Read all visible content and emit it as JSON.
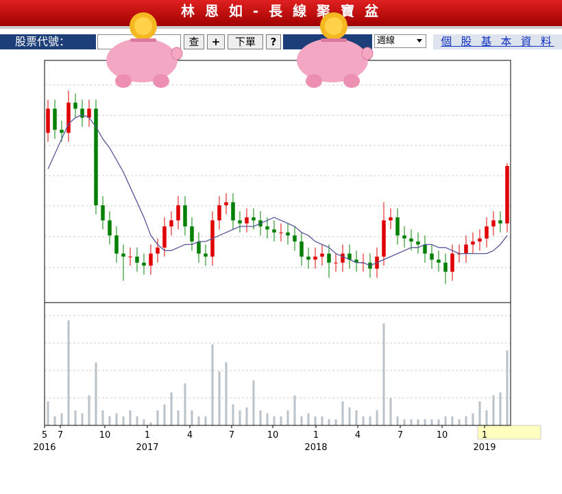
{
  "header": {
    "title": "林 恩 如 - 長 線 聚 寶 盆"
  },
  "toolbar": {
    "label": "股票代號：",
    "buttons": [
      "查",
      "+",
      "下單",
      "?"
    ],
    "period": "週線",
    "link": "個 股 基 本 資 料"
  },
  "chart_data": {
    "type": "candlestick",
    "x": [
      0,
      1,
      2,
      3,
      4,
      5,
      6,
      7,
      8,
      9,
      10,
      11,
      12,
      13,
      14,
      15,
      16,
      17,
      18,
      19,
      20,
      21,
      22,
      23,
      24,
      25,
      26,
      27,
      28,
      29,
      30,
      31,
      32,
      33,
      34,
      35,
      36,
      37,
      38,
      39,
      40,
      41,
      42,
      43,
      44,
      45,
      46,
      47,
      48,
      49,
      50,
      51,
      52,
      53,
      54,
      55,
      56,
      57,
      58,
      59,
      60,
      61,
      62,
      63,
      64,
      65,
      66,
      67
    ],
    "open": [
      5.6,
      6.4,
      5.7,
      5.6,
      6.6,
      6.4,
      6.1,
      6.4,
      3.2,
      2.7,
      2.2,
      1.6,
      1.5,
      1.5,
      1.3,
      1.2,
      1.6,
      1.8,
      2.5,
      2.7,
      3.2,
      2.5,
      2.0,
      1.6,
      1.5,
      2.7,
      3.2,
      3.3,
      2.7,
      2.6,
      2.8,
      2.7,
      2.5,
      2.4,
      2.3,
      2.3,
      2.2,
      2.0,
      1.5,
      1.4,
      1.5,
      1.6,
      1.3,
      1.3,
      1.6,
      1.4,
      1.3,
      1.3,
      1.1,
      1.5,
      2.7,
      2.8,
      2.2,
      2.1,
      2.0,
      1.9,
      1.6,
      1.4,
      1.3,
      1.0,
      1.6,
      1.6,
      1.9,
      2.0,
      2.1,
      2.5,
      2.7,
      2.6
    ],
    "high": [
      6.7,
      6.7,
      6.0,
      7.0,
      6.9,
      6.7,
      6.7,
      6.7,
      3.5,
      3.0,
      2.5,
      1.9,
      1.8,
      1.8,
      1.6,
      1.9,
      2.1,
      2.8,
      3.0,
      3.5,
      3.5,
      2.8,
      2.3,
      1.9,
      3.0,
      3.5,
      3.6,
      3.6,
      3.0,
      3.1,
      3.1,
      3.0,
      2.8,
      2.7,
      2.6,
      2.6,
      2.5,
      2.3,
      1.8,
      1.8,
      1.9,
      1.9,
      1.6,
      1.9,
      1.9,
      1.7,
      1.6,
      1.6,
      1.8,
      3.3,
      3.1,
      3.1,
      2.5,
      2.4,
      2.3,
      2.2,
      1.9,
      1.7,
      1.6,
      1.9,
      1.9,
      2.2,
      2.3,
      2.4,
      2.8,
      3.0,
      3.0,
      4.6
    ],
    "low": [
      5.3,
      5.4,
      5.3,
      5.3,
      6.1,
      5.8,
      5.8,
      2.9,
      2.4,
      1.9,
      1.3,
      0.7,
      1.2,
      1.0,
      0.9,
      0.9,
      1.3,
      1.5,
      2.2,
      2.4,
      2.2,
      1.7,
      1.3,
      1.2,
      1.2,
      2.4,
      2.9,
      2.4,
      2.3,
      2.3,
      2.4,
      2.2,
      2.1,
      2.0,
      2.0,
      1.9,
      1.7,
      1.2,
      1.1,
      1.1,
      1.2,
      0.8,
      1.0,
      1.0,
      1.1,
      1.0,
      1.0,
      0.8,
      0.8,
      1.2,
      2.4,
      1.9,
      1.8,
      1.7,
      1.6,
      1.3,
      1.1,
      1.0,
      0.6,
      0.7,
      1.3,
      1.3,
      1.6,
      1.7,
      1.8,
      2.2,
      2.3,
      2.3
    ],
    "close": [
      6.4,
      5.7,
      5.6,
      6.6,
      6.4,
      6.1,
      6.4,
      3.2,
      2.7,
      2.2,
      1.6,
      1.5,
      1.5,
      1.3,
      1.2,
      1.6,
      1.8,
      2.5,
      2.7,
      3.2,
      2.5,
      2.0,
      1.6,
      1.5,
      2.7,
      3.2,
      3.3,
      2.7,
      2.6,
      2.8,
      2.7,
      2.5,
      2.4,
      2.3,
      2.3,
      2.2,
      2.0,
      1.5,
      1.4,
      1.5,
      1.6,
      1.3,
      1.3,
      1.6,
      1.4,
      1.3,
      1.3,
      1.1,
      1.5,
      2.7,
      2.8,
      2.2,
      2.1,
      2.0,
      1.9,
      1.6,
      1.4,
      1.3,
      1.0,
      1.6,
      1.6,
      1.9,
      2.0,
      2.1,
      2.5,
      2.7,
      2.6,
      4.5
    ],
    "ma": [
      4.4,
      4.9,
      5.4,
      5.9,
      6.1,
      6.2,
      6.1,
      5.8,
      5.4,
      5.1,
      4.7,
      4.3,
      3.8,
      3.3,
      2.8,
      2.2,
      1.9,
      1.7,
      1.7,
      1.8,
      1.9,
      1.9,
      2.0,
      2.0,
      2.1,
      2.2,
      2.3,
      2.4,
      2.5,
      2.5,
      2.5,
      2.6,
      2.7,
      2.8,
      2.7,
      2.6,
      2.5,
      2.3,
      2.2,
      2.0,
      1.9,
      1.8,
      1.6,
      1.5,
      1.4,
      1.3,
      1.3,
      1.2,
      1.3,
      1.4,
      1.5,
      1.6,
      1.7,
      1.8,
      1.8,
      1.9,
      1.9,
      1.8,
      1.8,
      1.7,
      1.6,
      1.6,
      1.6,
      1.6,
      1.6,
      1.7,
      1.9,
      2.2
    ],
    "volume": [
      8,
      3,
      4,
      35,
      5,
      4,
      10,
      21,
      5,
      3,
      4,
      3,
      5,
      3,
      2,
      1,
      5,
      7,
      11,
      5,
      14,
      5,
      3,
      3,
      27,
      18,
      21,
      7,
      5,
      6,
      15,
      5,
      4,
      3,
      3,
      5,
      10,
      3,
      4,
      3,
      3,
      2,
      2,
      8,
      6,
      5,
      3,
      3,
      5,
      34,
      9,
      3,
      2,
      2,
      2,
      2,
      2,
      2,
      3,
      3,
      2,
      3,
      4,
      8,
      5,
      10,
      11,
      25
    ],
    "up_color": "#e00000",
    "down_color": "#008000",
    "ma_color": "#55559a",
    "volume_color": "#b9c1c9",
    "xlim": [
      -0.5,
      67.5
    ],
    "ylim": [
      0,
      8
    ],
    "vlim": [
      0,
      40
    ],
    "xticks": [
      {
        "value": -0.5,
        "label": "5"
      },
      {
        "value": 1.8,
        "label": "7"
      },
      {
        "value": 8.3,
        "label": "10"
      },
      {
        "value": 14.5,
        "label": "1"
      },
      {
        "value": 20.7,
        "label": "4"
      },
      {
        "value": 26.8,
        "label": "7"
      },
      {
        "value": 32.8,
        "label": "10"
      },
      {
        "value": 39.1,
        "label": "1"
      },
      {
        "value": 45.2,
        "label": "4"
      },
      {
        "value": 51.4,
        "label": "7"
      },
      {
        "value": 57.5,
        "label": "10"
      },
      {
        "value": 63.7,
        "label": "1"
      }
    ],
    "year_ticks": [
      {
        "value": -0.5,
        "label": "2016"
      },
      {
        "value": 14.5,
        "label": "2017"
      },
      {
        "value": 39.1,
        "label": "2018"
      },
      {
        "value": 63.7,
        "label": "2019"
      }
    ]
  }
}
